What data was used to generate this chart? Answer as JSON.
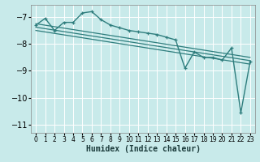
{
  "xlabel": "Humidex (Indice chaleur)",
  "bg_color": "#c8eaea",
  "grid_color": "#ffffff",
  "line_color": "#2e7d7d",
  "xlim": [
    -0.5,
    23.5
  ],
  "ylim": [
    -11.3,
    -6.55
  ],
  "yticks": [
    -11,
    -10,
    -9,
    -8,
    -7
  ],
  "xticks": [
    0,
    1,
    2,
    3,
    4,
    5,
    6,
    7,
    8,
    9,
    10,
    11,
    12,
    13,
    14,
    15,
    16,
    17,
    18,
    19,
    20,
    21,
    22,
    23
  ],
  "series1_x": [
    0,
    1,
    2,
    3,
    4,
    5,
    6,
    7,
    8,
    9,
    10,
    11,
    12,
    13,
    14,
    15,
    16,
    17,
    18,
    19,
    20,
    21,
    22,
    23
  ],
  "series1_y": [
    -7.3,
    -7.05,
    -7.5,
    -7.2,
    -7.2,
    -6.85,
    -6.8,
    -7.1,
    -7.3,
    -7.4,
    -7.5,
    -7.55,
    -7.6,
    -7.65,
    -7.75,
    -7.85,
    -8.9,
    -8.3,
    -8.5,
    -8.5,
    -8.6,
    -8.15,
    -10.55,
    -8.65
  ],
  "trend1_x": [
    0,
    23
  ],
  "trend1_y": [
    -7.25,
    -8.5
  ],
  "trend2_x": [
    0,
    23
  ],
  "trend2_y": [
    -7.38,
    -8.62
  ],
  "trend3_x": [
    0,
    23
  ],
  "trend3_y": [
    -7.5,
    -8.75
  ]
}
